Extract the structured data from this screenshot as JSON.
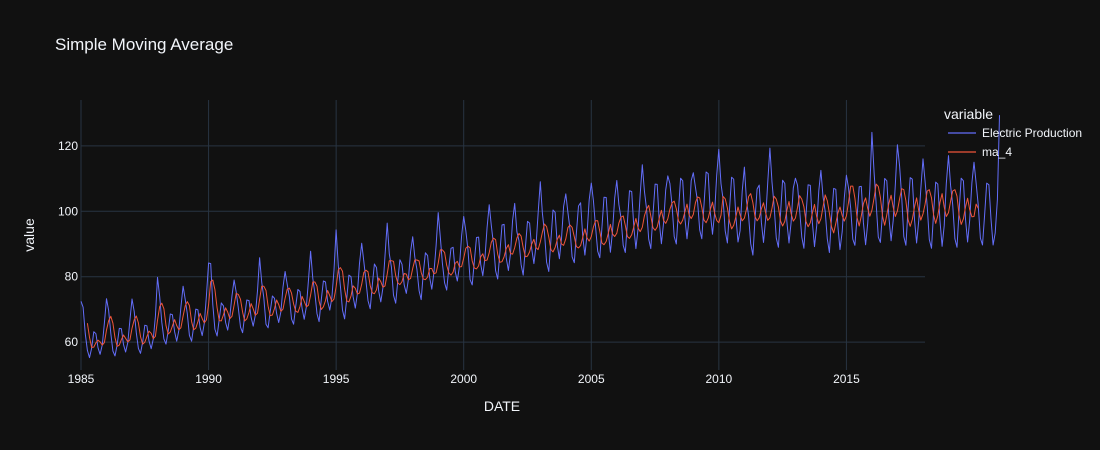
{
  "chart_data": {
    "type": "line",
    "title": "Simple Moving Average",
    "xlabel": "DATE",
    "ylabel": "value",
    "legend_title": "variable",
    "legend_position": "right",
    "xlim": [
      1985.0,
      2018.08
    ],
    "ylim": [
      51.5,
      134
    ],
    "x_ticks": [
      1985,
      1990,
      1995,
      2000,
      2005,
      2010,
      2015
    ],
    "y_ticks": [
      60,
      80,
      100,
      120
    ],
    "grid": true,
    "x_start": "1985-01",
    "x_step": "monthly",
    "colors": {
      "background": "#111111",
      "grid": "#283442",
      "text": "#f2f5fa"
    },
    "series": [
      {
        "name": "Electric Production",
        "color": "#636efa",
        "values": [
          72.5,
          70.7,
          62.5,
          57.5,
          55.3,
          58.1,
          63.2,
          62.6,
          58.3,
          56.3,
          59.2,
          65.9,
          73.3,
          69.8,
          62.7,
          57.3,
          55.8,
          59.1,
          64.2,
          64.1,
          59.3,
          57.0,
          59.9,
          66.7,
          73.2,
          69.4,
          62.9,
          58.1,
          56.6,
          60.1,
          65.2,
          65.0,
          60.4,
          58.0,
          61.0,
          67.9,
          79.8,
          73.9,
          66.1,
          61.0,
          59.4,
          63.4,
          68.6,
          68.4,
          63.2,
          60.3,
          63.5,
          70.7,
          77.1,
          73.1,
          68.7,
          62.1,
          60.3,
          64.8,
          70.1,
          69.9,
          64.5,
          62.0,
          65.8,
          74.1,
          84.2,
          84.0,
          71.5,
          64.0,
          61.9,
          66.9,
          72.0,
          71.1,
          66.0,
          63.7,
          67.8,
          74.2,
          79.0,
          75.3,
          70.5,
          64.6,
          62.9,
          68.1,
          72.9,
          72.7,
          67.6,
          64.9,
          68.2,
          75.7,
          85.8,
          78.4,
          73.6,
          65.5,
          64.4,
          69.3,
          74.1,
          73.4,
          68.8,
          66.0,
          69.3,
          76.8,
          81.6,
          77.7,
          73.8,
          67.1,
          65.5,
          70.9,
          76.1,
          75.5,
          70.3,
          67.0,
          70.9,
          79.1,
          87.8,
          79.5,
          74.9,
          68.7,
          66.3,
          73.0,
          78.7,
          78.4,
          72.5,
          69.8,
          73.7,
          82.0,
          94.3,
          83.4,
          77.1,
          69.8,
          67.1,
          73.5,
          80.5,
          80.0,
          73.9,
          70.4,
          74.9,
          84.1,
          90.2,
          84.7,
          78.9,
          72.7,
          70.2,
          77.4,
          83.9,
          82.8,
          75.6,
          72.3,
          76.6,
          86.4,
          96.4,
          87.0,
          83.0,
          74.4,
          71.9,
          78.8,
          85.2,
          83.8,
          77.5,
          74.9,
          79.2,
          87.7,
          92.2,
          86.0,
          82.3,
          75.7,
          73.0,
          81.1,
          87.3,
          86.5,
          79.7,
          76.2,
          81.2,
          89.5,
          99.6,
          92.1,
          84.1,
          78.1,
          75.9,
          82.6,
          88.7,
          89.0,
          81.6,
          78.7,
          83.3,
          92.5,
          98.4,
          94.1,
          88.1,
          79.1,
          77.5,
          84.6,
          92.0,
          92.1,
          83.8,
          80.3,
          86.0,
          95.1,
          102.0,
          95.7,
          89.9,
          81.8,
          79.3,
          87.4,
          95.8,
          96.0,
          85.8,
          81.9,
          87.1,
          97.2,
          102.4,
          93.7,
          91.0,
          83.7,
          80.5,
          89.0,
          96.9,
          96.4,
          88.6,
          84.0,
          89.5,
          99.3,
          109.0,
          99.4,
          93.4,
          84.4,
          81.6,
          91.1,
          100.4,
          99.7,
          89.6,
          85.5,
          91.7,
          101.5,
          105.3,
          99.7,
          94.6,
          86.1,
          84.3,
          93.4,
          101.6,
          102.6,
          92.1,
          86.6,
          92.9,
          103.5,
          108.6,
          103.3,
          95.4,
          87.8,
          85.8,
          94.9,
          104.3,
          104.2,
          93.7,
          87.5,
          93.8,
          104.1,
          109.4,
          102.0,
          97.9,
          89.6,
          87.4,
          96.6,
          106.3,
          106.0,
          95.3,
          88.6,
          94.8,
          105.2,
          114.2,
          106.2,
          100.6,
          91.5,
          88.6,
          98.6,
          108.3,
          108.2,
          96.7,
          90.1,
          96.5,
          106.5,
          110.8,
          108.5,
          101.6,
          92.3,
          90.0,
          100.3,
          110.1,
          109.3,
          98.2,
          91.6,
          97.9,
          109.3,
          111.8,
          107.2,
          102.9,
          94.3,
          91.6,
          102.0,
          112.0,
          111.5,
          99.6,
          93.0,
          99.4,
          111.0,
          118.9,
          108.4,
          103.7,
          94.0,
          90.3,
          100.5,
          110.4,
          109.8,
          98.4,
          90.6,
          94.1,
          106.1,
          113.5,
          103.2,
          98.6,
          90.1,
          86.6,
          97.6,
          106.8,
          108.0,
          96.5,
          90.5,
          97.5,
          108.6,
          119.3,
          108.9,
          101.6,
          91.8,
          89.0,
          99.1,
          109.5,
          108.5,
          96.7,
          90.3,
          96.6,
          107.1,
          110.1,
          108.0,
          100.4,
          92.1,
          88.7,
          98.9,
          108.1,
          107.9,
          96.4,
          89.2,
          95.6,
          106.3,
          112.5,
          104.5,
          100.0,
          91.6,
          87.4,
          97.9,
          107.0,
          106.7,
          95.4,
          88.3,
          93.8,
          104.1,
          111.0,
          107.2,
          100.9,
          91.5,
          89.6,
          98.0,
          107.5,
          107.6,
          96.5,
          89.8,
          96.3,
          106.8,
          124.1,
          111.8,
          102.1,
          92.1,
          90.5,
          100.0,
          110.0,
          109.3,
          98.2,
          91.0,
          97.2,
          108.0,
          120.3,
          113.8,
          104.4,
          92.3,
          89.6,
          100.9,
          110.3,
          109.8,
          97.5,
          90.3,
          97.0,
          106.7,
          116.0,
          109.1,
          101.6,
          91.4,
          88.7,
          99.6,
          108.9,
          108.3,
          97.0,
          89.3,
          95.6,
          108.5,
          117.0,
          107.8,
          102.0,
          91.6,
          89.0,
          100.2,
          110.1,
          109.3,
          97.6,
          90.6,
          97.3,
          108.7,
          115.0,
          108.7,
          102.0,
          91.8,
          89.7,
          98.8,
          108.6,
          108.1,
          97.6,
          89.7,
          93.4,
          103.6,
          129.4
        ]
      },
      {
        "name": "ma_4",
        "color": "#ef553b",
        "values": [
          null,
          null,
          null,
          65.8,
          61.5,
          58.4,
          58.5,
          59.8,
          60.6,
          60.1,
          59.1,
          59.9,
          63.7,
          66.5,
          67.9,
          65.8,
          61.4,
          58.7,
          59.1,
          60.8,
          62.2,
          61.2,
          60.1,
          60.7,
          64.2,
          66.8,
          68.0,
          65.9,
          61.7,
          59.4,
          60.0,
          61.7,
          63.4,
          62.7,
          61.1,
          61.8,
          66.7,
          70.9,
          71.9,
          70.2,
          65.1,
          62.5,
          63.1,
          64.9,
          66.9,
          65.1,
          63.8,
          64.4,
          68.0,
          71.1,
          72.4,
          71.2,
          66.3,
          63.8,
          64.3,
          66.3,
          68.8,
          67.2,
          65.9,
          66.8,
          71.5,
          78.5,
          79.0,
          76.1,
          70.5,
          66.6,
          66.5,
          68.4,
          70.5,
          69.2,
          67.2,
          67.9,
          71.3,
          74.9,
          74.6,
          73.1,
          69.2,
          66.5,
          67.1,
          69.1,
          71.8,
          70.2,
          68.2,
          68.9,
          73.1,
          77.1,
          77.1,
          75.8,
          71.0,
          68.1,
          68.3,
          70.3,
          72.9,
          71.5,
          69.4,
          70.1,
          73.4,
          76.2,
          76.5,
          75.0,
          71.7,
          69.5,
          69.1,
          70.9,
          74.0,
          72.5,
          70.8,
          71.3,
          74.4,
          78.4,
          78.4,
          77.1,
          72.5,
          70.0,
          70.8,
          72.7,
          75.8,
          74.2,
          72.4,
          73.2,
          76.9,
          82.1,
          82.8,
          81.7,
          76.2,
          72.6,
          72.3,
          74.1,
          77.2,
          76.5,
          74.7,
          75.0,
          77.7,
          81.3,
          82.0,
          81.5,
          77.3,
          75.1,
          74.8,
          76.0,
          79.6,
          78.5,
          76.8,
          77.2,
          80.8,
          84.9,
          84.9,
          84.7,
          80.3,
          78.1,
          77.6,
          78.5,
          81.0,
          80.8,
          79.1,
          79.5,
          82.5,
          85.1,
          85.1,
          84.8,
          81.3,
          79.3,
          79.1,
          79.9,
          82.5,
          82.5,
          80.9,
          81.2,
          84.1,
          88.2,
          88.2,
          87.4,
          83.5,
          81.2,
          80.5,
          81.4,
          84.1,
          84.7,
          83.0,
          83.1,
          85.7,
          88.7,
          89.3,
          88.8,
          84.8,
          82.7,
          82.4,
          83.3,
          86.1,
          87.0,
          84.9,
          85.1,
          87.3,
          90.5,
          91.8,
          91.3,
          86.9,
          84.4,
          84.6,
          86.1,
          88.6,
          89.8,
          87.1,
          86.9,
          88.9,
          91.8,
          93.2,
          92.4,
          88.9,
          86.1,
          86.3,
          87.6,
          90.0,
          91.4,
          88.9,
          88.3,
          90.6,
          93.6,
          96.1,
          95.3,
          92.1,
          88.3,
          87.6,
          88.9,
          91.4,
          92.7,
          90.0,
          89.6,
          91.6,
          95.0,
          95.8,
          95.1,
          92.2,
          89.2,
          88.8,
          89.5,
          92.1,
          94.6,
          91.9,
          90.9,
          92.3,
          95.2,
          97.1,
          97.1,
          93.9,
          90.3,
          89.8,
          90.8,
          93.3,
          96.0,
          93.1,
          92.3,
          93.3,
          96.4,
          98.2,
          98.6,
          95.7,
          92.3,
          91.7,
          92.8,
          95.3,
          97.8,
          94.9,
          93.8,
          95.1,
          98.6,
          100.7,
          101.8,
          98.6,
          95.0,
          94.2,
          95.2,
          97.9,
          100.3,
          97.2,
          96.3,
          97.7,
          100.6,
          102.6,
          103.1,
          100.8,
          97.1,
          96.1,
          97.3,
          99.7,
          102.2,
          98.9,
          97.8,
          99.0,
          102.7,
          104.4,
          104.1,
          101.2,
          97.3,
          96.5,
          97.9,
          100.5,
          102.8,
          99.4,
          97.2,
          96.5,
          98.8,
          104.5,
          103.8,
          101.0,
          96.9,
          94.6,
          95.7,
          98.3,
          101.3,
          98.9,
          97.1,
          97.9,
          100.7,
          104.5,
          105.4,
          102.6,
          98.4,
          97.1,
          98.0,
          100.8,
          102.6,
          99.6,
          97.2,
          98.0,
          100.9,
          104.6,
          103.7,
          101.3,
          97.1,
          95.5,
          96.9,
          100.3,
          103.0,
          99.3,
          97.0,
          97.9,
          101.1,
          104.8,
          103.7,
          101.4,
          96.8,
          95.3,
          96.5,
          99.5,
          102.1,
          98.3,
          96.2,
          97.7,
          101.3,
          105.0,
          103.2,
          99.4,
          95.3,
          93.4,
          96.3,
          99.5,
          101.3,
          98.7,
          97.0,
          98.6,
          102.7,
          107.7,
          107.7,
          104.0,
          98.2,
          95.5,
          98.6,
          102.3,
          104.1,
          100.9,
          98.5,
          100.3,
          104.1,
          108.3,
          107.6,
          104.2,
          98.4,
          95.7,
          98.9,
          102.4,
          104.9,
          101.2,
          98.4,
          100.1,
          103.8,
          106.9,
          106.6,
          103.2,
          97.4,
          95.4,
          97.5,
          101.3,
          104.1,
          100.2,
          97.3,
          99.2,
          102.2,
          106.2,
          106.6,
          104.1,
          98.9,
          96.3,
          98.7,
          102.7,
          105.4,
          101.3,
          98.4,
          99.6,
          103.1,
          106.2,
          106.6,
          104.6,
          98.8,
          96.0,
          97.7,
          101.3,
          104.0,
          100.5,
          98.3,
          98.4,
          102.2,
          100.9
        ]
      }
    ]
  }
}
